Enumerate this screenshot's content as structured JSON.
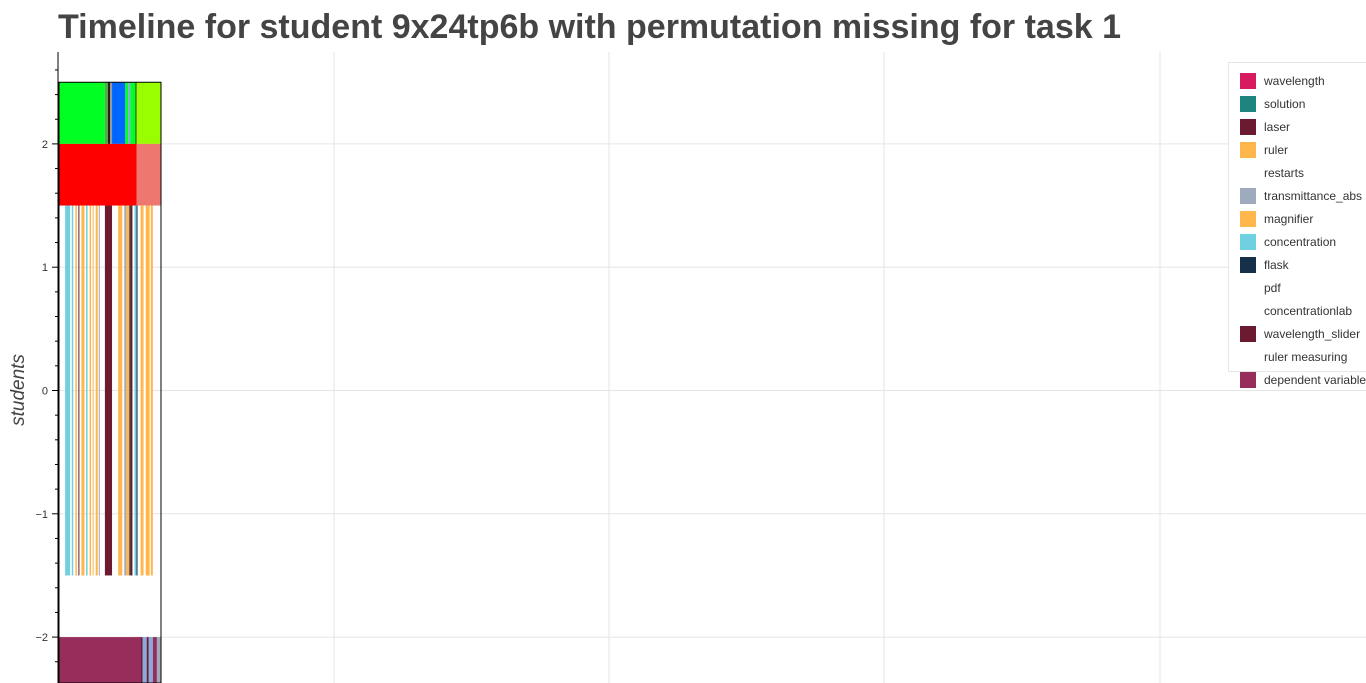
{
  "chart_data": {
    "type": "bar",
    "title": "Timeline for student 9x24tp6b with permutation missing for task 1",
    "ylabel": "students",
    "xlabel": "",
    "y_ticks": [
      2,
      1,
      0,
      -1,
      -2
    ],
    "y_tick_labels": [
      "2",
      "1",
      "0",
      "−1",
      "−2"
    ],
    "ylim": [
      -2.37,
      2.75
    ],
    "grid": true,
    "legend_position": "top-right",
    "legend": [
      {
        "label": "wavelength",
        "color": "#d81b60"
      },
      {
        "label": "solution",
        "color": "#1e847f"
      },
      {
        "label": "laser",
        "color": "#6b1a30"
      },
      {
        "label": "ruler",
        "color": "#ffb74d"
      },
      {
        "label": "restarts",
        "color": "#ffffff"
      },
      {
        "label": "transmittance_abs",
        "color": "#9eaabd"
      },
      {
        "label": "magnifier",
        "color": "#ffb74d"
      },
      {
        "label": "concentration",
        "color": "#6fd0df"
      },
      {
        "label": "flask",
        "color": "#17304a"
      },
      {
        "label": "pdf",
        "color": "#ffffff"
      },
      {
        "label": "concentrationlab",
        "color": "#ffffff"
      },
      {
        "label": "wavelength_slider",
        "color": "#6b1a30"
      },
      {
        "label": "ruler measuring",
        "color": "#ffffff"
      },
      {
        "label": "dependent variable",
        "color": "#962d5a"
      }
    ],
    "rows": [
      {
        "y0": 2.0,
        "y1": 2.5,
        "segments": [
          {
            "start": 0,
            "end": 0.45,
            "color": "#00ff22"
          },
          {
            "start": 0.45,
            "end": 0.48,
            "color": "#55aa44"
          },
          {
            "start": 0.48,
            "end": 0.5,
            "color": "#222222"
          },
          {
            "start": 0.5,
            "end": 0.52,
            "color": "#999999"
          },
          {
            "start": 0.52,
            "end": 0.65,
            "color": "#0066ff"
          },
          {
            "start": 0.65,
            "end": 0.68,
            "color": "#00ff22"
          },
          {
            "start": 0.68,
            "end": 0.7,
            "color": "#88aadd"
          },
          {
            "start": 0.7,
            "end": 0.75,
            "color": "#00ff22"
          },
          {
            "start": 0.75,
            "end": 0.76,
            "color": "#333333"
          },
          {
            "start": 0.76,
            "end": 1.0,
            "color": "#99ff00"
          }
        ]
      },
      {
        "y0": 1.5,
        "y1": 2.0,
        "segments": [
          {
            "start": 0,
            "end": 0.76,
            "color": "#ff0000"
          },
          {
            "start": 0.76,
            "end": 1.0,
            "color": "#ee7770"
          }
        ]
      },
      {
        "y0": -1.5,
        "y1": 1.5,
        "segments": [
          {
            "start": 0.06,
            "end": 0.11,
            "color": "#6fd0df"
          },
          {
            "start": 0.11,
            "end": 0.125,
            "color": "#ffffff"
          },
          {
            "start": 0.125,
            "end": 0.14,
            "color": "#6fd0df"
          },
          {
            "start": 0.16,
            "end": 0.175,
            "color": "#ffb74d"
          },
          {
            "start": 0.19,
            "end": 0.2,
            "color": "#6b1a30"
          },
          {
            "start": 0.22,
            "end": 0.25,
            "color": "#ffb74d"
          },
          {
            "start": 0.265,
            "end": 0.28,
            "color": "#6fd0df"
          },
          {
            "start": 0.3,
            "end": 0.315,
            "color": "#ffb74d"
          },
          {
            "start": 0.33,
            "end": 0.34,
            "color": "#ffb74d"
          },
          {
            "start": 0.36,
            "end": 0.38,
            "color": "#ffb74d"
          },
          {
            "start": 0.39,
            "end": 0.4,
            "color": "#9eaabd"
          },
          {
            "start": 0.45,
            "end": 0.52,
            "color": "#6b1a30"
          },
          {
            "start": 0.58,
            "end": 0.62,
            "color": "#ffb74d"
          },
          {
            "start": 0.64,
            "end": 0.66,
            "color": "#9eaabd"
          },
          {
            "start": 0.66,
            "end": 0.69,
            "color": "#ffb74d"
          },
          {
            "start": 0.69,
            "end": 0.7,
            "color": "#17304a"
          },
          {
            "start": 0.7,
            "end": 0.72,
            "color": "#6b1a30"
          },
          {
            "start": 0.74,
            "end": 0.76,
            "color": "#6fd0df"
          },
          {
            "start": 0.76,
            "end": 0.77,
            "color": "#17304a"
          },
          {
            "start": 0.8,
            "end": 0.83,
            "color": "#ffb74d"
          },
          {
            "start": 0.83,
            "end": 0.85,
            "color": "#ffffff"
          },
          {
            "start": 0.85,
            "end": 0.89,
            "color": "#ffb74d"
          },
          {
            "start": 0.89,
            "end": 0.9,
            "color": "#ffffff"
          },
          {
            "start": 0.9,
            "end": 0.92,
            "color": "#ffb74d"
          }
        ]
      },
      {
        "y0": -2.5,
        "y1": -2.0,
        "segments": [
          {
            "start": 0,
            "end": 0.8,
            "color": "#962d5a"
          },
          {
            "start": 0.8,
            "end": 0.82,
            "color": "#6b1a30"
          },
          {
            "start": 0.82,
            "end": 0.86,
            "color": "#88aadd"
          },
          {
            "start": 0.86,
            "end": 0.88,
            "color": "#6b1a30"
          },
          {
            "start": 0.88,
            "end": 0.92,
            "color": "#88aadd"
          },
          {
            "start": 0.92,
            "end": 0.96,
            "color": "#962d5a"
          },
          {
            "start": 0.96,
            "end": 1.0,
            "color": "#9eaabd"
          }
        ]
      }
    ]
  }
}
